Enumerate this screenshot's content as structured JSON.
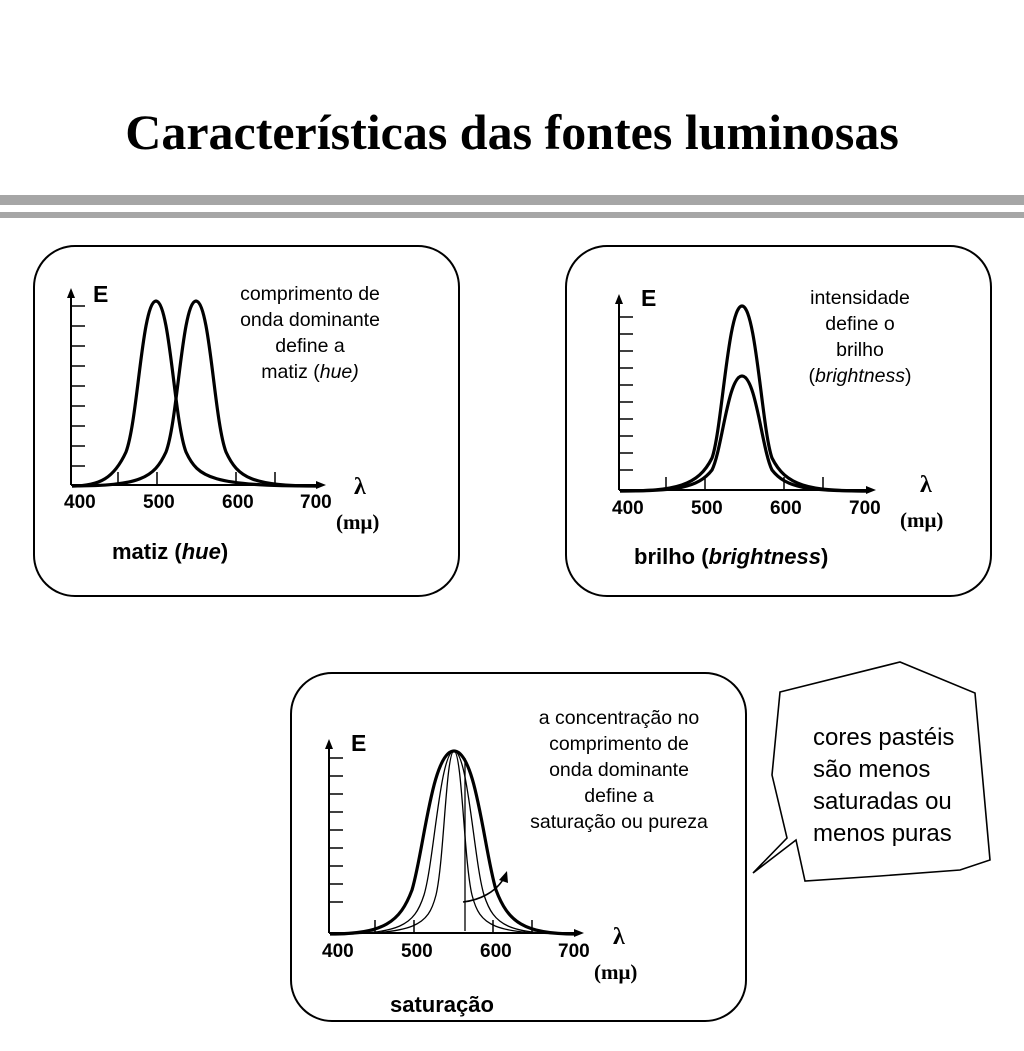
{
  "title": "Características das fontes luminosas",
  "panels": {
    "hue": {
      "y_label": "E",
      "description": "comprimento de\nonda dominante\ndefine a\nmatiz (",
      "description_em": "hue)",
      "caption_a": "matiz (",
      "caption_em": "hue",
      "caption_b": ")",
      "x_ticks": [
        "400",
        "500",
        "600",
        "700"
      ],
      "x_symbol": "λ",
      "x_unit": "(mμ)"
    },
    "brightness": {
      "y_label": "E",
      "description": "intensidade\ndefine o\nbrilho\n(",
      "description_em": "brightness",
      "description_end": ")",
      "caption_a": "brilho (",
      "caption_em": "brightness",
      "caption_b": ")",
      "x_ticks": [
        "400",
        "500",
        "600",
        "700"
      ],
      "x_symbol": "λ",
      "x_unit": "(mμ)"
    },
    "saturation": {
      "y_label": "E",
      "description": "a concentração no\ncomprimento de\nonda dominante\ndefine a\nsaturação ou pureza",
      "caption": "saturação",
      "x_ticks": [
        "400",
        "500",
        "600",
        "700"
      ],
      "x_symbol": "λ",
      "x_unit": "(mμ)"
    }
  },
  "callout": {
    "text": "cores pastéis\nsão menos\nsaturadas ou\nmenos puras"
  },
  "colors": {
    "rule": "#a6a6a6",
    "ink": "#000000"
  }
}
